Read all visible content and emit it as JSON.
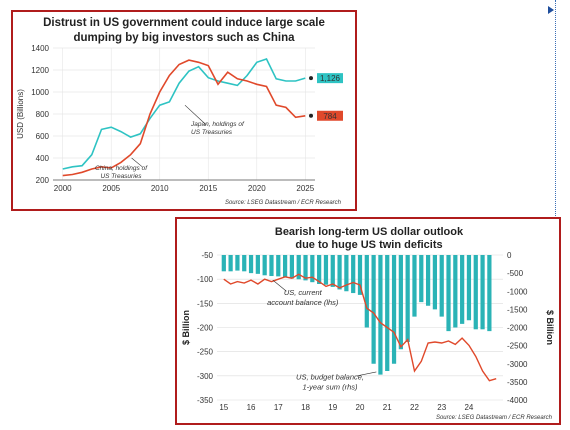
{
  "chart_data": [
    {
      "type": "line",
      "title_lines": [
        "Distrust in US government could induce large scale",
        "dumping by big investors such as China"
      ],
      "ylabel": "USD (Billions)",
      "xlabel": "",
      "ylim": [
        200,
        1400
      ],
      "xlim": [
        1999,
        2026
      ],
      "y_ticks": [
        200,
        400,
        600,
        800,
        1000,
        1200,
        1400
      ],
      "x_ticks": [
        2000,
        2005,
        2010,
        2015,
        2020,
        2025
      ],
      "grid": true,
      "series": [
        {
          "name": "Japan, holdings of US Treasuries",
          "color": "#2ec3c3",
          "end_label": "1,126",
          "end_value": 1126,
          "points": [
            [
              2000,
              300
            ],
            [
              2001,
              320
            ],
            [
              2002,
              330
            ],
            [
              2003,
              430
            ],
            [
              2004,
              660
            ],
            [
              2005,
              680
            ],
            [
              2006,
              640
            ],
            [
              2007,
              590
            ],
            [
              2008,
              620
            ],
            [
              2009,
              760
            ],
            [
              2010,
              880
            ],
            [
              2011,
              910
            ],
            [
              2012,
              1080
            ],
            [
              2013,
              1190
            ],
            [
              2014,
              1230
            ],
            [
              2015,
              1130
            ],
            [
              2016,
              1100
            ],
            [
              2017,
              1080
            ],
            [
              2018,
              1060
            ],
            [
              2019,
              1150
            ],
            [
              2020,
              1270
            ],
            [
              2021,
              1300
            ],
            [
              2022,
              1120
            ],
            [
              2023,
              1100
            ],
            [
              2024,
              1100
            ],
            [
              2025,
              1126
            ]
          ]
        },
        {
          "name": "China, holdings of US Treasuries",
          "color": "#e0492b",
          "end_label": "784",
          "end_value": 784,
          "points": [
            [
              2000,
              240
            ],
            [
              2001,
              250
            ],
            [
              2002,
              270
            ],
            [
              2003,
              300
            ],
            [
              2004,
              320
            ],
            [
              2005,
              310
            ],
            [
              2006,
              360
            ],
            [
              2007,
              430
            ],
            [
              2008,
              530
            ],
            [
              2009,
              800
            ],
            [
              2010,
              1000
            ],
            [
              2011,
              1150
            ],
            [
              2012,
              1250
            ],
            [
              2013,
              1290
            ],
            [
              2014,
              1270
            ],
            [
              2015,
              1240
            ],
            [
              2016,
              1070
            ],
            [
              2017,
              1180
            ],
            [
              2018,
              1120
            ],
            [
              2019,
              1100
            ],
            [
              2020,
              1070
            ],
            [
              2021,
              1050
            ],
            [
              2022,
              880
            ],
            [
              2023,
              860
            ],
            [
              2024,
              770
            ],
            [
              2025,
              784
            ]
          ]
        }
      ],
      "annotations": [
        {
          "lines": [
            "Japan, holdings of",
            "US Treasuries"
          ]
        },
        {
          "lines": [
            "China, holdings of",
            "US Treasuries"
          ]
        }
      ],
      "source": "Source: LSEG Datastream / ECR Research"
    },
    {
      "type": "bar+line",
      "title_lines": [
        "Bearish long-term US dollar outlook",
        "due to huge US twin deficits"
      ],
      "ylabel_left": "$ Billion",
      "ylabel_right": "$ Billion",
      "ylim_left": [
        -350,
        -50
      ],
      "ylim_right": [
        -4000,
        0
      ],
      "y_ticks_left": [
        -50,
        -100,
        -150,
        -200,
        -250,
        -300,
        -350
      ],
      "y_ticks_right": [
        0,
        -500,
        -1000,
        -1500,
        -2000,
        -2500,
        -3000,
        -3500,
        -4000
      ],
      "x_ticks": [
        "15",
        "16",
        "17",
        "18",
        "19",
        "20",
        "21",
        "22",
        "23",
        "24"
      ],
      "xlim": [
        2014.75,
        2025.25
      ],
      "grid": true,
      "bars": {
        "name": "US, budget balance, 1-year sum (rhs)",
        "axis": "right",
        "color": "#2ab3b6",
        "points": [
          [
            2015.0,
            -450
          ],
          [
            2015.25,
            -450
          ],
          [
            2015.5,
            -430
          ],
          [
            2015.75,
            -450
          ],
          [
            2016.0,
            -500
          ],
          [
            2016.25,
            -520
          ],
          [
            2016.5,
            -560
          ],
          [
            2016.75,
            -580
          ],
          [
            2017.0,
            -590
          ],
          [
            2017.25,
            -620
          ],
          [
            2017.5,
            -650
          ],
          [
            2017.75,
            -670
          ],
          [
            2018.0,
            -700
          ],
          [
            2018.25,
            -750
          ],
          [
            2018.5,
            -800
          ],
          [
            2018.75,
            -820
          ],
          [
            2019.0,
            -880
          ],
          [
            2019.25,
            -950
          ],
          [
            2019.5,
            -1000
          ],
          [
            2019.75,
            -1050
          ],
          [
            2020.0,
            -1100
          ],
          [
            2020.25,
            -2000
          ],
          [
            2020.5,
            -3000
          ],
          [
            2020.75,
            -3300
          ],
          [
            2021.0,
            -3200
          ],
          [
            2021.25,
            -3000
          ],
          [
            2021.5,
            -2600
          ],
          [
            2021.75,
            -2400
          ],
          [
            2022.0,
            -1700
          ],
          [
            2022.25,
            -1300
          ],
          [
            2022.5,
            -1400
          ],
          [
            2022.75,
            -1500
          ],
          [
            2023.0,
            -1700
          ],
          [
            2023.25,
            -2100
          ],
          [
            2023.5,
            -2000
          ],
          [
            2023.75,
            -1900
          ],
          [
            2024.0,
            -1800
          ],
          [
            2024.25,
            -2050
          ],
          [
            2024.5,
            -2050
          ],
          [
            2024.75,
            -2100
          ]
        ]
      },
      "line": {
        "name": "US, current account balance (lhs)",
        "axis": "left",
        "color": "#e0492b",
        "points": [
          [
            2015.0,
            -100
          ],
          [
            2015.25,
            -110
          ],
          [
            2015.5,
            -105
          ],
          [
            2015.75,
            -108
          ],
          [
            2016.0,
            -102
          ],
          [
            2016.25,
            -110
          ],
          [
            2016.5,
            -100
          ],
          [
            2016.75,
            -105
          ],
          [
            2017.0,
            -100
          ],
          [
            2017.25,
            -95
          ],
          [
            2017.5,
            -98
          ],
          [
            2017.75,
            -90
          ],
          [
            2018.0,
            -98
          ],
          [
            2018.25,
            -96
          ],
          [
            2018.5,
            -105
          ],
          [
            2018.75,
            -115
          ],
          [
            2019.0,
            -110
          ],
          [
            2019.25,
            -118
          ],
          [
            2019.5,
            -112
          ],
          [
            2019.75,
            -107
          ],
          [
            2020.0,
            -112
          ],
          [
            2020.25,
            -160
          ],
          [
            2020.5,
            -170
          ],
          [
            2020.75,
            -190
          ],
          [
            2021.0,
            -200
          ],
          [
            2021.25,
            -210
          ],
          [
            2021.5,
            -240
          ],
          [
            2021.75,
            -225
          ],
          [
            2022.0,
            -290
          ],
          [
            2022.25,
            -270
          ],
          [
            2022.5,
            -232
          ],
          [
            2022.75,
            -230
          ],
          [
            2023.0,
            -232
          ],
          [
            2023.25,
            -228
          ],
          [
            2023.5,
            -235
          ],
          [
            2023.75,
            -222
          ],
          [
            2024.0,
            -237
          ],
          [
            2024.25,
            -260
          ],
          [
            2024.5,
            -290
          ],
          [
            2024.75,
            -310
          ],
          [
            2025.0,
            -306
          ]
        ]
      },
      "annotations": [
        {
          "lines": [
            "US, current",
            "account balance (lhs)"
          ]
        },
        {
          "lines": [
            "US, budget balance,",
            "1-year sum (rhs)"
          ]
        }
      ],
      "source": "Source: LSEG Datastream / ECR Research"
    }
  ]
}
